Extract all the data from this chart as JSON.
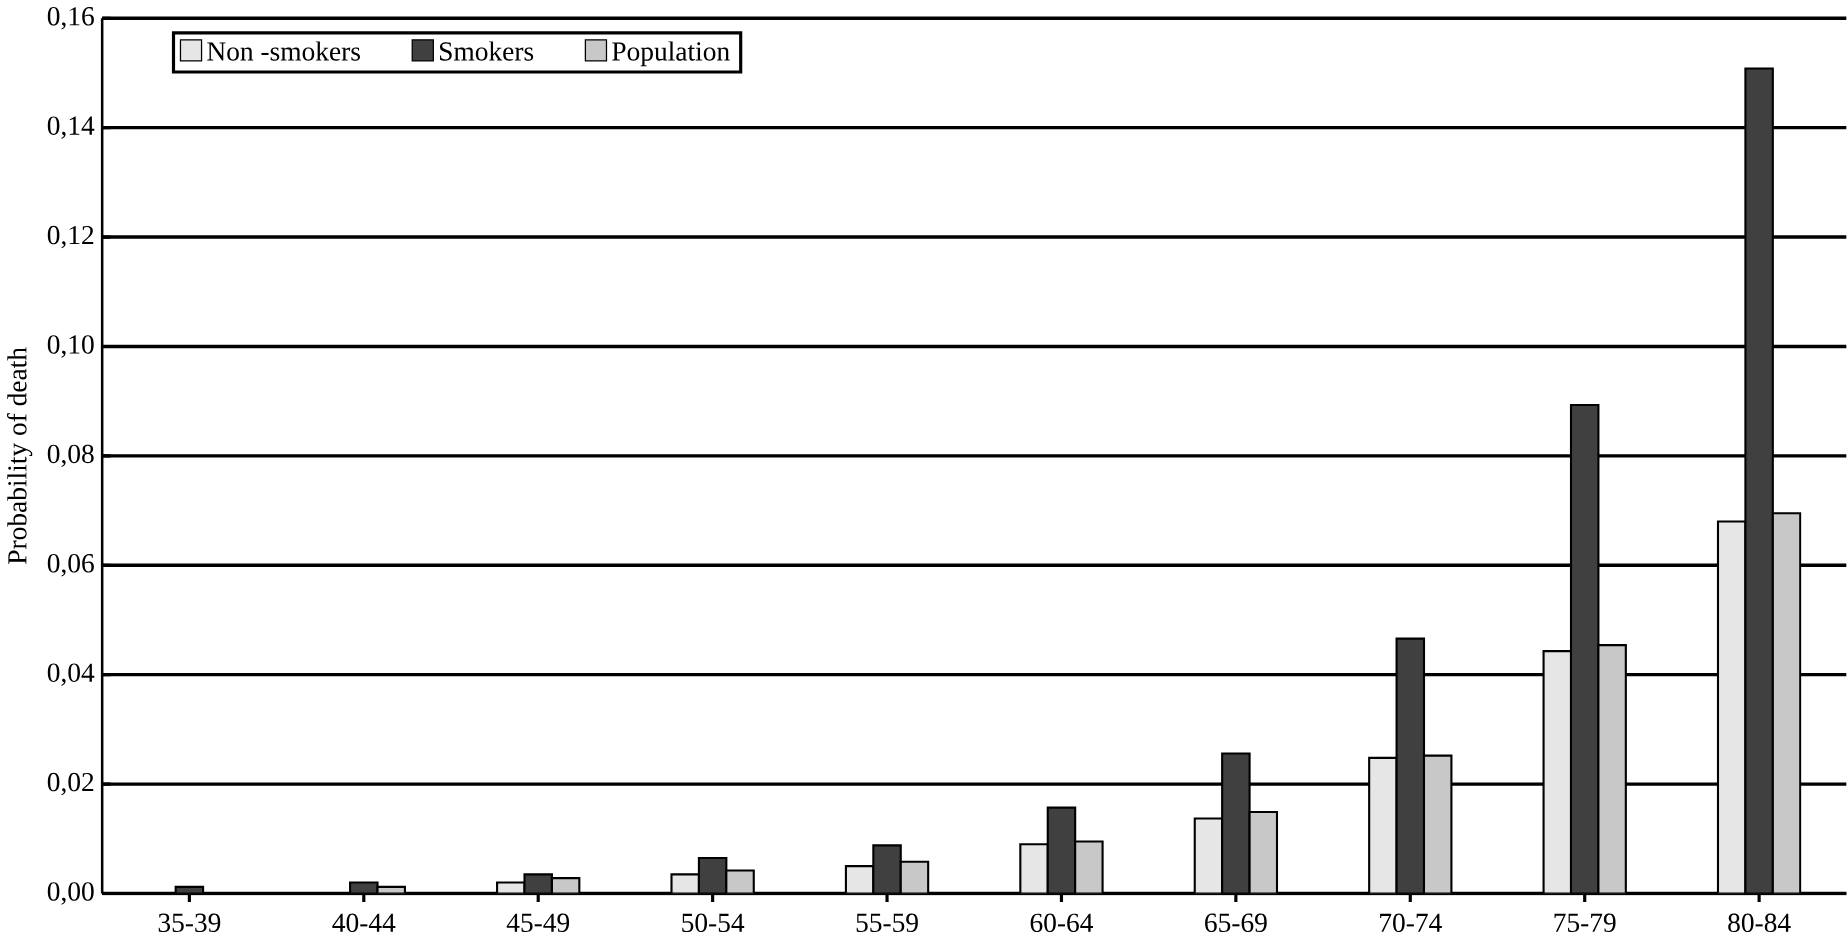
{
  "chart_data": {
    "type": "bar",
    "ylabel": "Probability of death",
    "categories": [
      "35-39",
      "40-44",
      "45-49",
      "50-54",
      "55-59",
      "60-64",
      "65-69",
      "70-74",
      "75-79",
      "80-84"
    ],
    "series": [
      {
        "name": "Non -smokers",
        "color": "#e6e6e6",
        "values": [
          null,
          null,
          0.002,
          0.0035,
          0.005,
          0.009,
          0.0137,
          0.0248,
          0.0443,
          0.068
        ]
      },
      {
        "name": "Smokers",
        "color": "#404040",
        "values": [
          0.0012,
          0.002,
          0.0035,
          0.0065,
          0.0088,
          0.0157,
          0.0256,
          0.0466,
          0.0893,
          0.1508
        ]
      },
      {
        "name": "Population",
        "color": "#c8c8c8",
        "values": [
          null,
          0.0012,
          0.0028,
          0.0042,
          0.0058,
          0.0095,
          0.0149,
          0.0252,
          0.0454,
          0.0695
        ]
      }
    ],
    "ylim": [
      0,
      0.16
    ],
    "yticks": [
      {
        "value": 0,
        "label": "0,00"
      },
      {
        "value": 0.02,
        "label": "0,02"
      },
      {
        "value": 0.04,
        "label": "0,04"
      },
      {
        "value": 0.06,
        "label": "0,06"
      },
      {
        "value": 0.08,
        "label": "0,08"
      },
      {
        "value": 0.1,
        "label": "0,10"
      },
      {
        "value": 0.12,
        "label": "0,12"
      },
      {
        "value": 0.14,
        "label": "0,14"
      },
      {
        "value": 0.16,
        "label": "0,16"
      }
    ],
    "grid": "y",
    "legend": "top left"
  }
}
